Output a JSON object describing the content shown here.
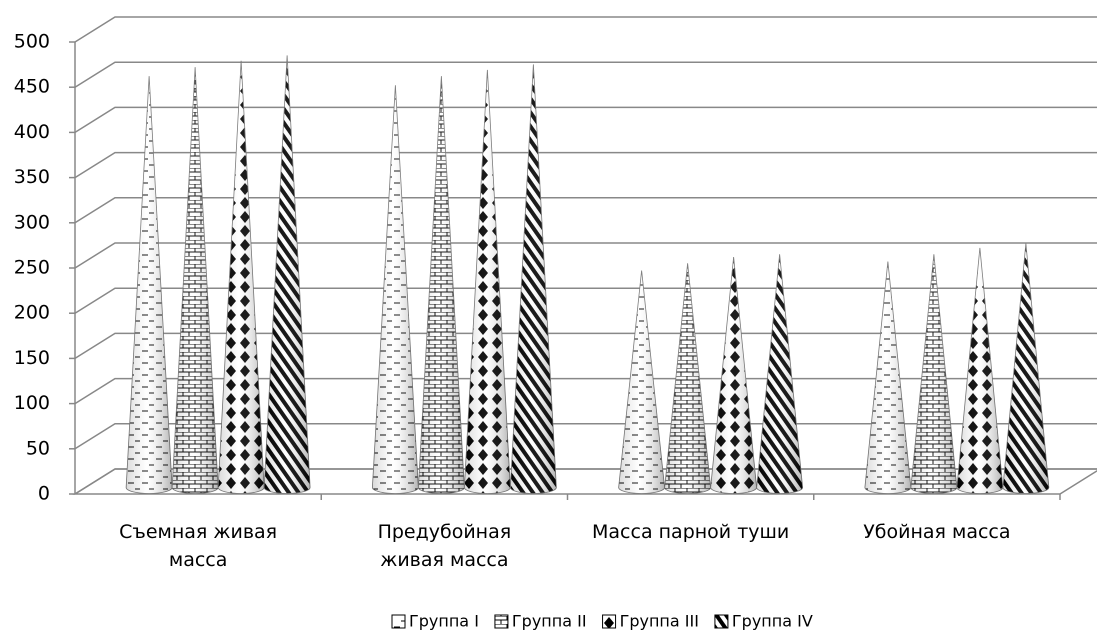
{
  "chart_data": {
    "type": "cone3d",
    "categories": [
      "Съемная живая масса",
      "Предубойная живая масса",
      "Масса парной туши",
      "Убойная масса"
    ],
    "series": [
      {
        "name": "Группа I",
        "values": [
          455,
          445,
          240,
          250
        ]
      },
      {
        "name": "Группа II",
        "values": [
          465,
          455,
          248,
          258
        ]
      },
      {
        "name": "Группа III",
        "values": [
          472,
          462,
          255,
          265
        ]
      },
      {
        "name": "Группа IV",
        "values": [
          478,
          468,
          258,
          270
        ]
      }
    ],
    "ylim": [
      0,
      500
    ],
    "yticks": [
      0,
      50,
      100,
      150,
      200,
      250,
      300,
      350,
      400,
      450,
      500
    ],
    "grid": true
  }
}
